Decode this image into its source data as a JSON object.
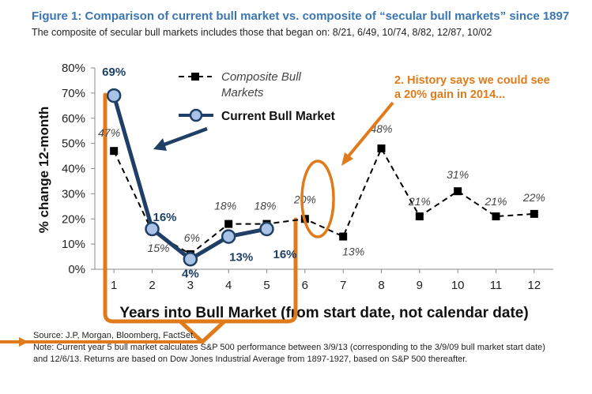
{
  "figure": {
    "title": "Figure 1: Comparison of current bull market vs. composite of “secular bull markets” since 1897",
    "subtitle": "The composite of secular bull markets includes those that began on: 8/21, 6/49, 10/74, 8/82, 12/87, 10/02"
  },
  "chart_data": {
    "type": "line",
    "xlabel": "Years into Bull Market (from start date, not calendar date)",
    "ylabel": "% change 12-month",
    "ylim": [
      0,
      80
    ],
    "yticks": [
      "0%",
      "10%",
      "20%",
      "30%",
      "40%",
      "50%",
      "60%",
      "70%",
      "80%"
    ],
    "x": [
      1,
      2,
      3,
      4,
      5,
      6,
      7,
      8,
      9,
      10,
      11,
      12
    ],
    "legend_position": "top-center",
    "series": [
      {
        "name": "Composite Bull Markets",
        "name_line1": "Composite Bull",
        "name_line2": "Markets",
        "x": [
          1,
          2,
          3,
          4,
          5,
          6,
          7,
          8,
          9,
          10,
          11,
          12
        ],
        "values": [
          47,
          15,
          6,
          18,
          18,
          20,
          13,
          48,
          21,
          31,
          21,
          22
        ],
        "labels": [
          "47%",
          "15%",
          "6%",
          "18%",
          "18%",
          "20%",
          "13%",
          "48%",
          "21%",
          "31%",
          "21%",
          "22%"
        ],
        "color": "#000000"
      },
      {
        "name": "Current Bull Market",
        "x": [
          1,
          2,
          3,
          4,
          5
        ],
        "values": [
          69,
          16,
          4,
          13,
          16
        ],
        "labels": [
          "69%",
          "16%",
          "4%",
          "13%",
          "16%"
        ],
        "color": "#1f3f66",
        "marker_fill": "#a9c3e6"
      }
    ],
    "annotation": {
      "text_line1": "2. History says we could see",
      "text_line2": "a 20% gain in 2014...",
      "color": "#e07b1c"
    }
  },
  "notes": {
    "source": "Source: J.P, Morgan, Bloomberg, FactSet.",
    "note_line1": "Note: Current year 5 bull market calculates S&P 500 performance between 3/9/13 (corresponding to the 3/9/09 bull market start date)",
    "note_line2": "and 12/6/13. Returns are based on Dow Jones Industrial Average from 1897-1927, based on S&P 500 thereafter."
  }
}
